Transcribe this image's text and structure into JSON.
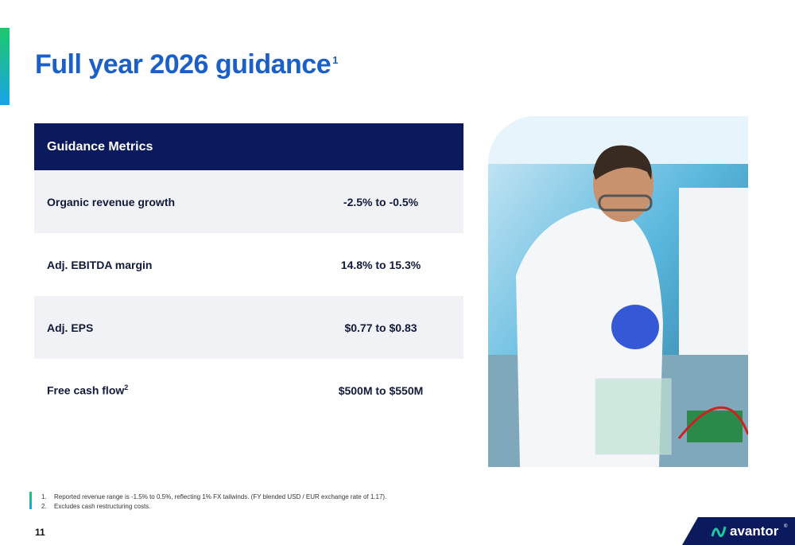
{
  "header": {
    "title": "Full year 2026 guidance",
    "title_note": "1"
  },
  "table": {
    "header": "Guidance Metrics",
    "rows": [
      {
        "metric": "Organic revenue growth",
        "value": "-2.5% to -0.5%"
      },
      {
        "metric": "Adj. EBITDA margin",
        "value": "14.8% to 15.3%"
      },
      {
        "metric": "Adj. EPS",
        "value": "$0.77 to $0.83"
      },
      {
        "metric": "Free cash flow",
        "note": "2",
        "value": "$500M to $550M"
      }
    ]
  },
  "footnotes": [
    {
      "number": "1.",
      "text": "Reported revenue range is -1.5% to 0.5%, reflecting 1% FX tailwinds. (FY blended USD / EUR exchange rate of 1.17)."
    },
    {
      "number": "2.",
      "text": "Excludes cash restructuring costs."
    }
  ],
  "page_number": "11",
  "logo": {
    "name": "avantor",
    "mark": "®"
  }
}
